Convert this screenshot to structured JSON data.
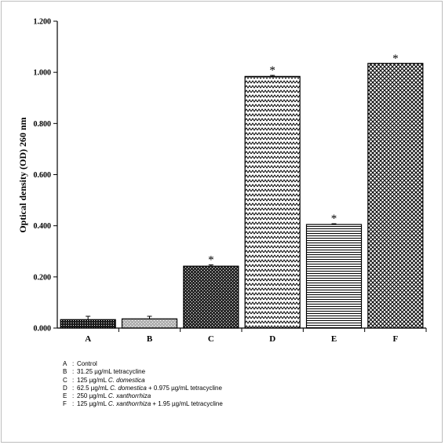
{
  "chart_data": {
    "type": "bar",
    "ylabel": "Optical density (OD) 260 nm",
    "xlabel": "",
    "ylim": [
      0,
      1.2
    ],
    "yticks": [
      "0.000",
      "0.200",
      "0.400",
      "0.600",
      "0.800",
      "1.000",
      "1.200"
    ],
    "categories": [
      "A",
      "B",
      "C",
      "D",
      "E",
      "F"
    ],
    "values": [
      0.033,
      0.036,
      0.242,
      0.984,
      0.405,
      1.035
    ],
    "errors": [
      0.013,
      0.01,
      0.005,
      0.004,
      0.003,
      0.0
    ],
    "significance": [
      "",
      "",
      "*",
      "*",
      "*",
      "*"
    ],
    "patterns": [
      "dense-check",
      "solid-light",
      "dark-check",
      "zigzag",
      "horizontal-lines",
      "diamond-grid"
    ],
    "grid": false,
    "legend": [
      {
        "key": "A",
        "parts": [
          {
            "t": "Control",
            "i": false
          }
        ]
      },
      {
        "key": "B",
        "parts": [
          {
            "t": "31.25 µg/mL tetracycline",
            "i": false
          }
        ]
      },
      {
        "key": "C",
        "parts": [
          {
            "t": "125 µg/mL ",
            "i": false
          },
          {
            "t": "C. domestica",
            "i": true
          }
        ]
      },
      {
        "key": "D",
        "parts": [
          {
            "t": "62.5 µg/mL ",
            "i": false
          },
          {
            "t": "C. domestica",
            "i": true
          },
          {
            "t": " + 0.975 µg/mL tetracycline",
            "i": false
          }
        ]
      },
      {
        "key": "E",
        "parts": [
          {
            "t": "250 µg/mL ",
            "i": false
          },
          {
            "t": "C. xanthorrhiza",
            "i": true
          }
        ]
      },
      {
        "key": "F",
        "parts": [
          {
            "t": "125 µg/mL ",
            "i": false
          },
          {
            "t": "C. xanthorrhiza",
            "i": true
          },
          {
            "t": " + 1.95 µg/mL tetracycline",
            "i": false
          }
        ]
      }
    ]
  }
}
